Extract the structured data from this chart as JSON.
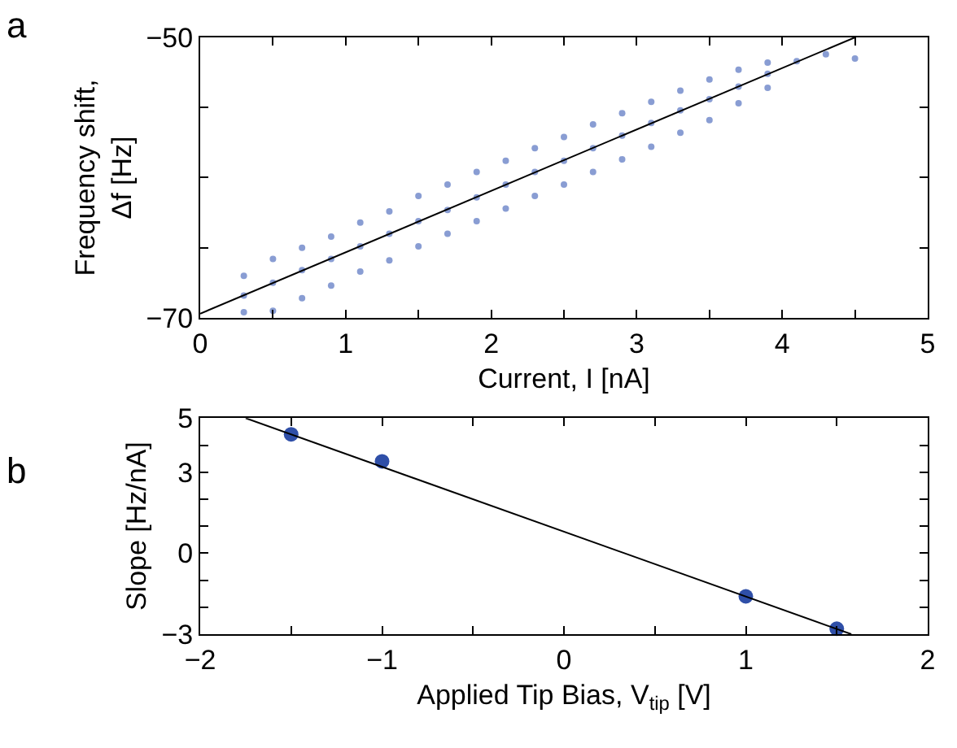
{
  "chart_data": [
    {
      "type": "scatter",
      "title": "a",
      "xlabel": "Current, I [nA]",
      "ylabel": "Frequency shift,\nΔf [Hz]",
      "xlim": [
        0,
        5
      ],
      "xticks": [
        0,
        {
          "value": 0.5,
          "label": null
        },
        1,
        {
          "value": 1.5,
          "label": null
        },
        2,
        {
          "value": 2.5,
          "label": null
        },
        3,
        {
          "value": 3.5,
          "label": null
        },
        4,
        {
          "value": 4.5,
          "label": null
        },
        5
      ],
      "ylim": [
        -70,
        -50
      ],
      "yticks": [
        -70,
        {
          "value": -65,
          "label": null
        },
        {
          "value": -60,
          "label": null
        },
        {
          "value": -55,
          "label": null
        },
        -50
      ],
      "series": [
        {
          "color": "#3b5bb5",
          "marker": "circle",
          "x": [
            0.3,
            0.3,
            0.3,
            0.5,
            0.5,
            0.5,
            0.7,
            0.7,
            0.7,
            0.9,
            0.9,
            0.9,
            1.1,
            1.1,
            1.1,
            1.3,
            1.3,
            1.3,
            1.5,
            1.5,
            1.5,
            1.7,
            1.7,
            1.7,
            1.9,
            1.9,
            1.9,
            2.1,
            2.1,
            2.1,
            2.3,
            2.3,
            2.3,
            2.5,
            2.5,
            2.5,
            2.7,
            2.7,
            2.7,
            2.9,
            2.9,
            2.9,
            3.1,
            3.1,
            3.1,
            3.3,
            3.3,
            3.3,
            3.5,
            3.5,
            3.5,
            3.7,
            3.7,
            3.7,
            3.9,
            3.9,
            3.9,
            4.1,
            4.3,
            4.5
          ],
          "values": [
            -67.0,
            -68.4,
            -69.6,
            -65.8,
            -67.5,
            -69.5,
            -65.0,
            -66.6,
            -68.6,
            -64.2,
            -65.8,
            -67.7,
            -63.2,
            -64.9,
            -66.7,
            -62.4,
            -64.0,
            -65.9,
            -61.3,
            -63.1,
            -64.9,
            -60.5,
            -62.3,
            -64.0,
            -59.6,
            -61.4,
            -63.1,
            -58.8,
            -60.5,
            -62.2,
            -57.9,
            -59.6,
            -61.3,
            -57.1,
            -58.8,
            -60.5,
            -56.2,
            -57.9,
            -59.6,
            -55.4,
            -57.0,
            -58.7,
            -54.6,
            -56.1,
            -57.8,
            -53.8,
            -55.2,
            -56.8,
            -53.0,
            -54.4,
            -55.9,
            -52.3,
            -53.5,
            -54.7,
            -51.8,
            -52.6,
            -53.6,
            -51.7,
            -51.2,
            -51.5
          ]
        },
        {
          "type": "line",
          "marker": "none",
          "color": "#000000",
          "x": [
            0,
            4.5
          ],
          "values": [
            -69.7,
            -50
          ]
        }
      ]
    },
    {
      "type": "scatter",
      "title": "b",
      "xlabel": "Applied Tip Bias, V$_{tip}$ [V]",
      "ylabel": "Slope [Hz/nA]",
      "xlim": [
        -2,
        2
      ],
      "xticks": [
        -2,
        {
          "value": -1.5,
          "label": null
        },
        -1,
        {
          "value": -0.5,
          "label": null
        },
        0,
        {
          "value": 0.5,
          "label": null
        },
        1,
        {
          "value": 1.5,
          "label": null
        },
        2
      ],
      "ylim": [
        -3,
        5
      ],
      "yticks": [
        -3,
        {
          "value": -2,
          "label": null
        },
        {
          "value": -1,
          "label": null
        },
        0,
        {
          "value": 1,
          "label": null
        },
        {
          "value": 2,
          "label": null
        },
        3,
        {
          "value": 4,
          "label": null
        },
        5
      ],
      "series": [
        {
          "color": "#2f4fa8",
          "marker": "circle",
          "x": [
            -1.5,
            -1,
            1,
            1.5
          ],
          "values": [
            4.4,
            3.4,
            -1.6,
            -2.8
          ]
        },
        {
          "type": "line",
          "marker": "none",
          "color": "#000000",
          "x": [
            -1.75,
            1.58
          ],
          "values": [
            5,
            -3
          ]
        }
      ]
    }
  ]
}
